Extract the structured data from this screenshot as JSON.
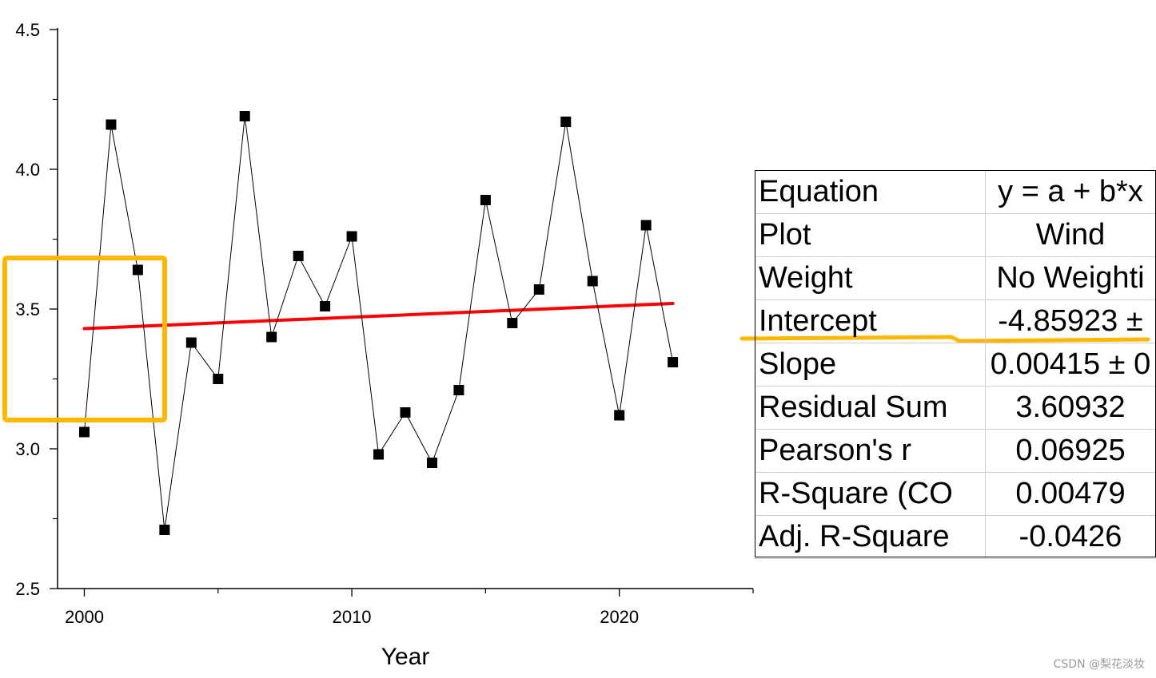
{
  "chart_data": {
    "type": "scatter",
    "xlabel": "Year",
    "ylabel": "",
    "xlim": [
      1999,
      2025
    ],
    "ylim": [
      2.5,
      4.5
    ],
    "xticks": [
      2000,
      2010,
      2020
    ],
    "yticks": [
      2.5,
      3.0,
      3.5,
      4.0,
      4.5
    ],
    "xtick_labels": [
      "2000",
      "2010",
      "2020"
    ],
    "ytick_labels": [
      "2.5",
      "3.0",
      "3.5",
      "4.0",
      "4.5"
    ],
    "grid": false,
    "series": [
      {
        "x": [
          2000,
          2001,
          2002,
          2003,
          2004,
          2005,
          2006,
          2007,
          2008,
          2009,
          2010,
          2011,
          2012,
          2013,
          2014,
          2015,
          2016,
          2017,
          2018,
          2019,
          2020,
          2021,
          2022
        ],
        "y": [
          3.06,
          4.16,
          3.64,
          2.71,
          3.38,
          3.25,
          4.19,
          3.4,
          3.69,
          3.51,
          3.76,
          2.98,
          3.13,
          2.95,
          3.21,
          3.89,
          3.45,
          3.57,
          4.17,
          3.6,
          3.12,
          3.8,
          3.31
        ],
        "color": "#000000",
        "marker": "square",
        "connected": true
      }
    ],
    "fit_line": {
      "color": "#ff0000",
      "x": [
        2000,
        2022
      ],
      "y": [
        3.43,
        3.52
      ]
    },
    "highlight_box_color": "#ffb800",
    "underline_color": "#ffb800"
  },
  "stats_table": {
    "rows": [
      {
        "key": "Equation",
        "value": "y = a + b*x"
      },
      {
        "key": "Plot",
        "value": "Wind"
      },
      {
        "key": "Weight",
        "value": "No Weighti"
      },
      {
        "key": "Intercept",
        "value": "-4.85923 ±"
      },
      {
        "key": "Slope",
        "value": "0.00415 ± 0"
      },
      {
        "key": "Residual Sum",
        "value": "3.60932"
      },
      {
        "key": "Pearson's r",
        "value": "0.06925"
      },
      {
        "key": "R-Square (CO",
        "value": "0.00479"
      },
      {
        "key": "Adj. R-Square",
        "value": "-0.0426"
      }
    ]
  },
  "watermark": "CSDN @梨花淡妆"
}
